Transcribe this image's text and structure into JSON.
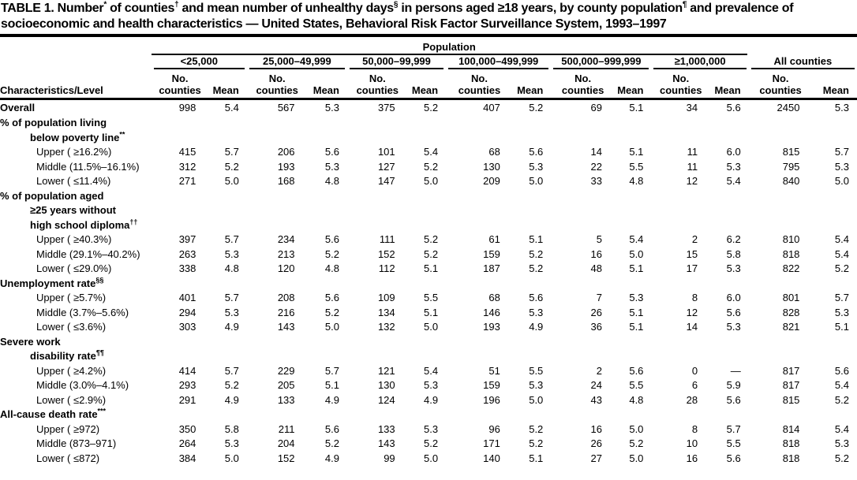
{
  "title": "TABLE 1. Number* of counties† and mean number of unhealthy days§ in persons aged ≥18 years, by county population¶ and prevalence of socioeconomic and health characteristics — United States, Behavioral Risk Factor Surveillance System, 1993–1997",
  "header": {
    "population_label": "Population",
    "characteristics_label": "Characteristics/Level",
    "groups": [
      "<25,000",
      "25,000–49,999",
      "50,000–99,999",
      "100,000–499,999",
      "500,000–999,999",
      "≥1,000,000",
      "All counties"
    ],
    "no_label": "No.",
    "counties_label": "counties",
    "mean_label": "Mean"
  },
  "rows": [
    {
      "label": "Overall",
      "bold": true,
      "indent": 0,
      "values": [
        "998",
        "5.4",
        "567",
        "5.3",
        "375",
        "5.2",
        "407",
        "5.2",
        "69",
        "5.1",
        "34",
        "5.6",
        "2450",
        "5.3"
      ]
    },
    {
      "label": "% of population living",
      "bold": true,
      "indent": 0,
      "values": null
    },
    {
      "label": "below poverty line**",
      "bold": true,
      "indent": 1,
      "values": null
    },
    {
      "label": "Upper ( ≥16.2%)",
      "bold": false,
      "indent": 2,
      "values": [
        "415",
        "5.7",
        "206",
        "5.6",
        "101",
        "5.4",
        "68",
        "5.6",
        "14",
        "5.1",
        "11",
        "6.0",
        "815",
        "5.7"
      ]
    },
    {
      "label": "Middle (11.5%–16.1%)",
      "bold": false,
      "indent": 2,
      "values": [
        "312",
        "5.2",
        "193",
        "5.3",
        "127",
        "5.2",
        "130",
        "5.3",
        "22",
        "5.5",
        "11",
        "5.3",
        "795",
        "5.3"
      ]
    },
    {
      "label": "Lower ( ≤11.4%)",
      "bold": false,
      "indent": 2,
      "values": [
        "271",
        "5.0",
        "168",
        "4.8",
        "147",
        "5.0",
        "209",
        "5.0",
        "33",
        "4.8",
        "12",
        "5.4",
        "840",
        "5.0"
      ]
    },
    {
      "label": "% of population aged",
      "bold": true,
      "indent": 0,
      "values": null
    },
    {
      "label": "≥25 years without",
      "bold": true,
      "indent": 1,
      "values": null
    },
    {
      "label": "high school diploma††",
      "bold": true,
      "indent": 1,
      "values": null
    },
    {
      "label": "Upper ( ≥40.3%)",
      "bold": false,
      "indent": 2,
      "values": [
        "397",
        "5.7",
        "234",
        "5.6",
        "111",
        "5.2",
        "61",
        "5.1",
        "5",
        "5.4",
        "2",
        "6.2",
        "810",
        "5.4"
      ]
    },
    {
      "label": "Middle (29.1%–40.2%)",
      "bold": false,
      "indent": 2,
      "values": [
        "263",
        "5.3",
        "213",
        "5.2",
        "152",
        "5.2",
        "159",
        "5.2",
        "16",
        "5.0",
        "15",
        "5.8",
        "818",
        "5.4"
      ]
    },
    {
      "label": "Lower ( ≤29.0%)",
      "bold": false,
      "indent": 2,
      "values": [
        "338",
        "4.8",
        "120",
        "4.8",
        "112",
        "5.1",
        "187",
        "5.2",
        "48",
        "5.1",
        "17",
        "5.3",
        "822",
        "5.2"
      ]
    },
    {
      "label": "Unemployment rate§§",
      "bold": true,
      "indent": 0,
      "values": null
    },
    {
      "label": "Upper ( ≥5.7%)",
      "bold": false,
      "indent": 2,
      "values": [
        "401",
        "5.7",
        "208",
        "5.6",
        "109",
        "5.5",
        "68",
        "5.6",
        "7",
        "5.3",
        "8",
        "6.0",
        "801",
        "5.7"
      ]
    },
    {
      "label": "Middle (3.7%–5.6%)",
      "bold": false,
      "indent": 2,
      "values": [
        "294",
        "5.3",
        "216",
        "5.2",
        "134",
        "5.1",
        "146",
        "5.3",
        "26",
        "5.1",
        "12",
        "5.6",
        "828",
        "5.3"
      ]
    },
    {
      "label": "Lower ( ≤3.6%)",
      "bold": false,
      "indent": 2,
      "values": [
        "303",
        "4.9",
        "143",
        "5.0",
        "132",
        "5.0",
        "193",
        "4.9",
        "36",
        "5.1",
        "14",
        "5.3",
        "821",
        "5.1"
      ]
    },
    {
      "label": "Severe work",
      "bold": true,
      "indent": 0,
      "values": null
    },
    {
      "label": "disability rate¶¶",
      "bold": true,
      "indent": 1,
      "values": null
    },
    {
      "label": "Upper ( ≥4.2%)",
      "bold": false,
      "indent": 2,
      "values": [
        "414",
        "5.7",
        "229",
        "5.7",
        "121",
        "5.4",
        "51",
        "5.5",
        "2",
        "5.6",
        "0",
        "—",
        "817",
        "5.6"
      ]
    },
    {
      "label": "Middle (3.0%–4.1%)",
      "bold": false,
      "indent": 2,
      "values": [
        "293",
        "5.2",
        "205",
        "5.1",
        "130",
        "5.3",
        "159",
        "5.3",
        "24",
        "5.5",
        "6",
        "5.9",
        "817",
        "5.4"
      ]
    },
    {
      "label": "Lower ( ≤2.9%)",
      "bold": false,
      "indent": 2,
      "values": [
        "291",
        "4.9",
        "133",
        "4.9",
        "124",
        "4.9",
        "196",
        "5.0",
        "43",
        "4.8",
        "28",
        "5.6",
        "815",
        "5.2"
      ]
    },
    {
      "label": "All-cause death rate***",
      "bold": true,
      "indent": 0,
      "values": null
    },
    {
      "label": "Upper ( ≥972)",
      "bold": false,
      "indent": 2,
      "values": [
        "350",
        "5.8",
        "211",
        "5.6",
        "133",
        "5.3",
        "96",
        "5.2",
        "16",
        "5.0",
        "8",
        "5.7",
        "814",
        "5.4"
      ]
    },
    {
      "label": "Middle (873–971)",
      "bold": false,
      "indent": 2,
      "values": [
        "264",
        "5.3",
        "204",
        "5.2",
        "143",
        "5.2",
        "171",
        "5.2",
        "26",
        "5.2",
        "10",
        "5.5",
        "818",
        "5.3"
      ]
    },
    {
      "label": "Lower ( ≤872)",
      "bold": false,
      "indent": 2,
      "values": [
        "384",
        "5.0",
        "152",
        "4.9",
        "99",
        "5.0",
        "140",
        "5.1",
        "27",
        "5.0",
        "16",
        "5.6",
        "818",
        "5.2"
      ]
    }
  ]
}
